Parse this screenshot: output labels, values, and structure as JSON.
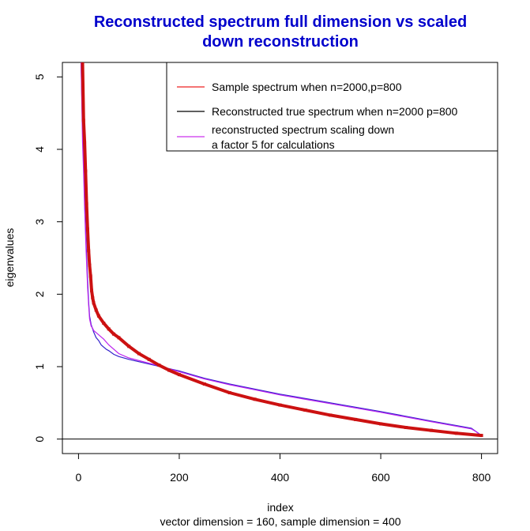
{
  "chart_data": {
    "type": "scatter",
    "title_lines": [
      "Reconstructed spectrum full dimension vs scaled",
      "down reconstruction"
    ],
    "xlabel": "index",
    "subtitle": "vector dimension = 160, sample dimension = 400",
    "ylabel": "eigenvalues",
    "xlim": [
      -32,
      832
    ],
    "ylim": [
      -0.2,
      5.2
    ],
    "xticks": [
      0,
      200,
      400,
      600,
      800
    ],
    "xtick_labels": [
      "0",
      "200",
      "400",
      "600",
      "800"
    ],
    "yticks": [
      0,
      1,
      2,
      3,
      4,
      5
    ],
    "ytick_labels": [
      "0",
      "1",
      "2",
      "3",
      "4",
      "5"
    ],
    "hline": 0,
    "legend_position": "top-right",
    "legend": [
      {
        "label_lines": [
          "Sample spectrum when n=2000,p=800"
        ],
        "color": "#ee2222"
      },
      {
        "label_lines": [
          "Reconstructed true spectrum when n=2000 p=800"
        ],
        "color": "#000000"
      },
      {
        "label_lines": [
          "reconstructed spectrum scaling down",
          "a factor 5 for calculations"
        ],
        "color": "#cc33ee"
      }
    ],
    "series": [
      {
        "name": "Sample spectrum when n=2000,p=800",
        "kind": "points",
        "color": "#cc1111",
        "x": [
          8,
          10,
          12,
          14,
          16,
          18,
          20,
          22,
          24,
          26,
          28,
          30,
          35,
          40,
          50,
          60,
          70,
          80,
          100,
          120,
          140,
          160,
          180,
          200,
          250,
          300,
          350,
          400,
          450,
          500,
          550,
          600,
          650,
          700,
          750,
          800
        ],
        "y": [
          5.2,
          4.4,
          4.1,
          3.7,
          3.25,
          2.9,
          2.6,
          2.4,
          2.25,
          2.05,
          1.95,
          1.88,
          1.78,
          1.7,
          1.6,
          1.52,
          1.45,
          1.4,
          1.28,
          1.18,
          1.1,
          1.02,
          0.95,
          0.89,
          0.76,
          0.64,
          0.55,
          0.47,
          0.4,
          0.33,
          0.27,
          0.21,
          0.16,
          0.12,
          0.08,
          0.05
        ]
      },
      {
        "name": "Reconstructed true spectrum when n=2000 p=800",
        "kind": "line",
        "color": "#3322cc",
        "x": [
          5,
          8,
          10,
          12,
          15,
          18,
          20,
          22,
          25,
          28,
          30,
          35,
          40,
          45,
          50,
          55,
          60,
          70,
          80,
          100,
          150,
          200,
          250,
          300,
          400,
          500,
          600,
          700,
          780,
          790,
          800
        ],
        "y": [
          5.2,
          4.3,
          3.9,
          3.3,
          2.7,
          2.2,
          1.9,
          1.7,
          1.58,
          1.52,
          1.48,
          1.4,
          1.36,
          1.3,
          1.27,
          1.24,
          1.22,
          1.17,
          1.14,
          1.1,
          1.02,
          0.94,
          0.84,
          0.76,
          0.62,
          0.5,
          0.38,
          0.25,
          0.15,
          0.1,
          0.05
        ]
      },
      {
        "name": "reconstructed spectrum scaling down a factor 5 for calculations",
        "kind": "line",
        "color": "#bb22ee",
        "x": [
          5,
          8,
          10,
          12,
          15,
          18,
          20,
          22,
          25,
          28,
          30,
          35,
          40,
          50,
          60,
          80,
          100,
          150,
          200,
          250,
          300,
          350,
          400,
          500,
          600,
          700,
          780,
          790,
          800
        ],
        "y": [
          5.2,
          4.1,
          3.7,
          3.2,
          2.6,
          2.1,
          1.85,
          1.66,
          1.56,
          1.53,
          1.5,
          1.47,
          1.44,
          1.38,
          1.3,
          1.18,
          1.12,
          1.03,
          0.93,
          0.83,
          0.75,
          0.68,
          0.61,
          0.49,
          0.37,
          0.24,
          0.14,
          0.1,
          0.04
        ]
      }
    ]
  }
}
